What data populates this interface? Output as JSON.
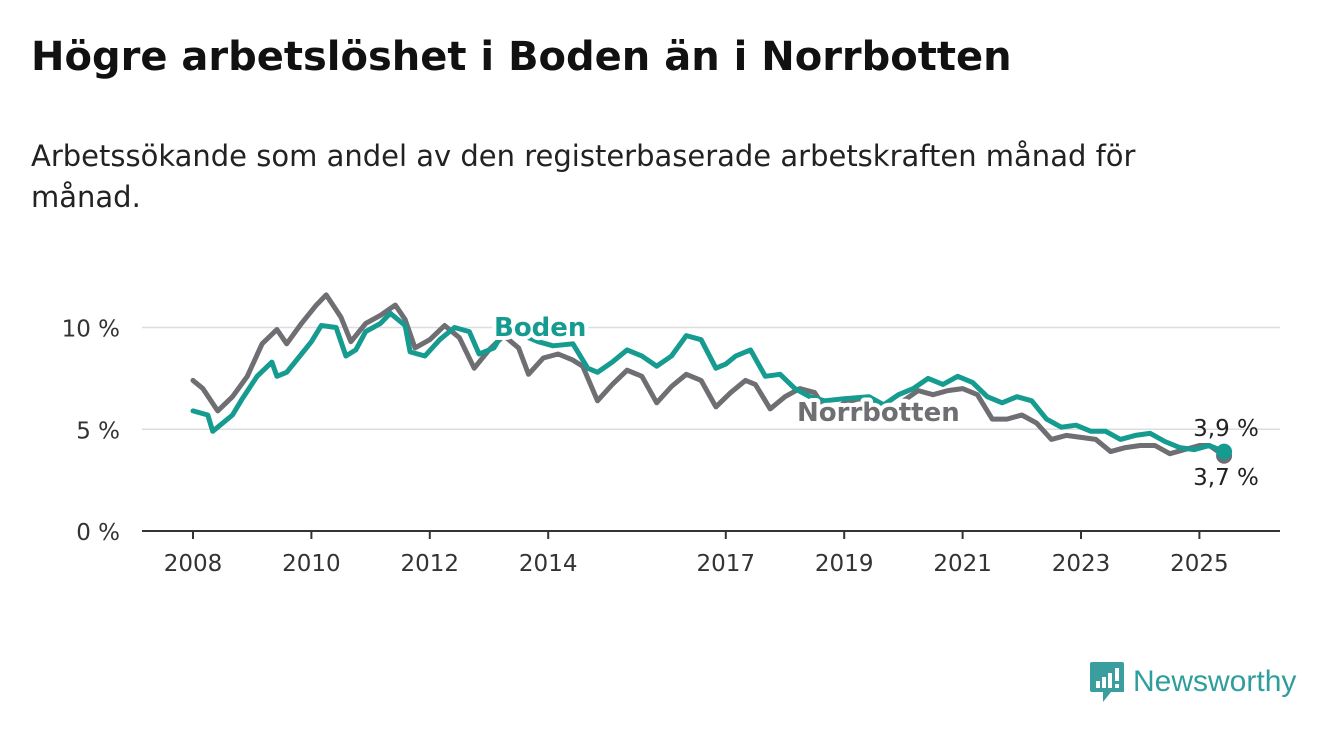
{
  "header": {
    "title": "Högre arbetslöshet i Boden än i Norrbotten",
    "subtitle": "Arbetssökande som andel av den registerbaserade arbetskraften månad för månad."
  },
  "brand": {
    "name": "Newsworthy",
    "icon": "newsworthy-logo-icon",
    "color": "#3a9e9e"
  },
  "colors": {
    "boden": "#159b8f",
    "norrbotten": "#6e6e73",
    "grid": "#dddddd",
    "axis": "#333333"
  },
  "chart_data": {
    "type": "line",
    "x_ticks": [
      "2008",
      "2010",
      "2012",
      "2014",
      "2017",
      "2019",
      "2021",
      "2023",
      "2025"
    ],
    "y_ticks": [
      {
        "value": 0,
        "label": "0 %"
      },
      {
        "value": 5,
        "label": "5 %"
      },
      {
        "value": 10,
        "label": "10 %"
      }
    ],
    "ylim": [
      0,
      10
    ],
    "grid": true,
    "end_labels": {
      "boden": "3,9 %",
      "norrbotten": "3,7 %"
    },
    "series": [
      {
        "name": "Boden",
        "key": "boden",
        "points": [
          [
            "2008-01",
            5.9
          ],
          [
            "2008-04",
            5.7
          ],
          [
            "2008-05",
            4.9
          ],
          [
            "2008-09",
            5.7
          ],
          [
            "2008-11",
            6.5
          ],
          [
            "2009-02",
            7.6
          ],
          [
            "2009-05",
            8.3
          ],
          [
            "2009-06",
            7.6
          ],
          [
            "2009-08",
            7.8
          ],
          [
            "2009-11",
            8.7
          ],
          [
            "2010-01",
            9.3
          ],
          [
            "2010-03",
            10.1
          ],
          [
            "2010-06",
            10.0
          ],
          [
            "2010-08",
            8.6
          ],
          [
            "2010-10",
            8.9
          ],
          [
            "2010-12",
            9.8
          ],
          [
            "2011-03",
            10.2
          ],
          [
            "2011-05",
            10.7
          ],
          [
            "2011-08",
            10.1
          ],
          [
            "2011-09",
            8.8
          ],
          [
            "2011-12",
            8.6
          ],
          [
            "2012-03",
            9.4
          ],
          [
            "2012-06",
            10.0
          ],
          [
            "2012-09",
            9.8
          ],
          [
            "2012-11",
            8.7
          ],
          [
            "2013-02",
            9.0
          ],
          [
            "2013-05",
            10.2
          ],
          [
            "2013-08",
            9.6
          ],
          [
            "2013-11",
            9.3
          ],
          [
            "2014-02",
            9.1
          ],
          [
            "2014-06",
            9.2
          ],
          [
            "2014-09",
            8.0
          ],
          [
            "2014-11",
            7.8
          ],
          [
            "2015-02",
            8.3
          ],
          [
            "2015-05",
            8.9
          ],
          [
            "2015-08",
            8.6
          ],
          [
            "2015-11",
            8.1
          ],
          [
            "2016-02",
            8.6
          ],
          [
            "2016-05",
            9.6
          ],
          [
            "2016-08",
            9.4
          ],
          [
            "2016-11",
            8.0
          ],
          [
            "2017-01",
            8.2
          ],
          [
            "2017-03",
            8.6
          ],
          [
            "2017-06",
            8.9
          ],
          [
            "2017-09",
            7.6
          ],
          [
            "2017-12",
            7.7
          ],
          [
            "2018-03",
            7.0
          ],
          [
            "2018-06",
            6.6
          ],
          [
            "2018-09",
            6.4
          ],
          [
            "2019-01",
            6.5
          ],
          [
            "2019-06",
            6.6
          ],
          [
            "2019-09",
            6.2
          ],
          [
            "2019-12",
            6.7
          ],
          [
            "2020-03",
            7.0
          ],
          [
            "2020-06",
            7.5
          ],
          [
            "2020-09",
            7.2
          ],
          [
            "2020-12",
            7.6
          ],
          [
            "2021-03",
            7.3
          ],
          [
            "2021-06",
            6.6
          ],
          [
            "2021-09",
            6.3
          ],
          [
            "2021-12",
            6.6
          ],
          [
            "2022-03",
            6.4
          ],
          [
            "2022-06",
            5.5
          ],
          [
            "2022-09",
            5.1
          ],
          [
            "2022-12",
            5.2
          ],
          [
            "2023-03",
            4.9
          ],
          [
            "2023-06",
            4.9
          ],
          [
            "2023-09",
            4.5
          ],
          [
            "2023-12",
            4.7
          ],
          [
            "2024-03",
            4.8
          ],
          [
            "2024-06",
            4.4
          ],
          [
            "2024-09",
            4.1
          ],
          [
            "2024-12",
            4.0
          ],
          [
            "2025-03",
            4.2
          ],
          [
            "2025-06",
            3.9
          ]
        ]
      },
      {
        "name": "Norrbotten",
        "key": "norrbotten",
        "points": [
          [
            "2008-01",
            7.4
          ],
          [
            "2008-03",
            7.0
          ],
          [
            "2008-06",
            5.9
          ],
          [
            "2008-09",
            6.6
          ],
          [
            "2008-12",
            7.6
          ],
          [
            "2009-03",
            9.2
          ],
          [
            "2009-06",
            9.9
          ],
          [
            "2009-08",
            9.2
          ],
          [
            "2009-11",
            10.2
          ],
          [
            "2010-02",
            11.1
          ],
          [
            "2010-04",
            11.6
          ],
          [
            "2010-07",
            10.5
          ],
          [
            "2010-09",
            9.3
          ],
          [
            "2010-12",
            10.2
          ],
          [
            "2011-03",
            10.6
          ],
          [
            "2011-06",
            11.1
          ],
          [
            "2011-08",
            10.4
          ],
          [
            "2011-10",
            9.0
          ],
          [
            "2012-01",
            9.4
          ],
          [
            "2012-04",
            10.1
          ],
          [
            "2012-07",
            9.5
          ],
          [
            "2012-10",
            8.0
          ],
          [
            "2013-01",
            8.9
          ],
          [
            "2013-04",
            9.6
          ],
          [
            "2013-07",
            9.0
          ],
          [
            "2013-09",
            7.7
          ],
          [
            "2013-12",
            8.5
          ],
          [
            "2014-03",
            8.7
          ],
          [
            "2014-06",
            8.4
          ],
          [
            "2014-08",
            8.1
          ],
          [
            "2014-11",
            6.4
          ],
          [
            "2015-02",
            7.2
          ],
          [
            "2015-05",
            7.9
          ],
          [
            "2015-08",
            7.6
          ],
          [
            "2015-11",
            6.3
          ],
          [
            "2016-02",
            7.1
          ],
          [
            "2016-05",
            7.7
          ],
          [
            "2016-08",
            7.4
          ],
          [
            "2016-11",
            6.1
          ],
          [
            "2017-02",
            6.8
          ],
          [
            "2017-05",
            7.4
          ],
          [
            "2017-07",
            7.2
          ],
          [
            "2017-10",
            6.0
          ],
          [
            "2018-01",
            6.6
          ],
          [
            "2018-04",
            7.0
          ],
          [
            "2018-07",
            6.8
          ],
          [
            "2018-10",
            5.7
          ],
          [
            "2019-01",
            6.3
          ],
          [
            "2019-04",
            6.5
          ],
          [
            "2019-07",
            6.2
          ],
          [
            "2019-10",
            5.6
          ],
          [
            "2020-01",
            6.4
          ],
          [
            "2020-04",
            6.9
          ],
          [
            "2020-07",
            6.7
          ],
          [
            "2020-10",
            6.9
          ],
          [
            "2021-01",
            7.0
          ],
          [
            "2021-04",
            6.7
          ],
          [
            "2021-07",
            5.5
          ],
          [
            "2021-10",
            5.5
          ],
          [
            "2022-01",
            5.7
          ],
          [
            "2022-04",
            5.3
          ],
          [
            "2022-07",
            4.5
          ],
          [
            "2022-10",
            4.7
          ],
          [
            "2023-01",
            4.6
          ],
          [
            "2023-04",
            4.5
          ],
          [
            "2023-07",
            3.9
          ],
          [
            "2023-10",
            4.1
          ],
          [
            "2024-01",
            4.2
          ],
          [
            "2024-04",
            4.2
          ],
          [
            "2024-07",
            3.8
          ],
          [
            "2024-10",
            4.0
          ],
          [
            "2025-01",
            4.2
          ],
          [
            "2025-03",
            4.2
          ],
          [
            "2025-06",
            3.7
          ]
        ]
      }
    ]
  }
}
